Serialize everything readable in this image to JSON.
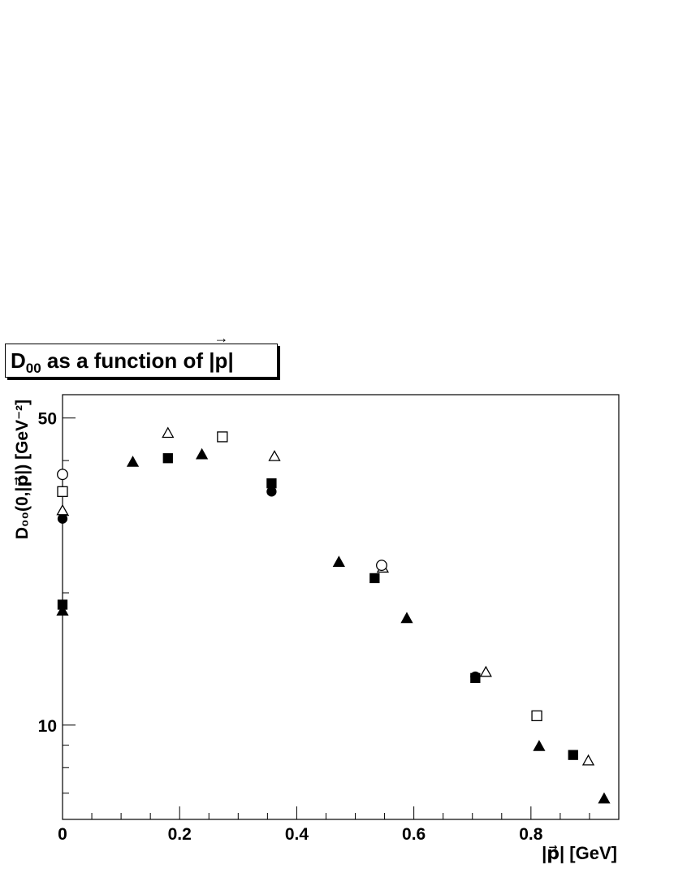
{
  "chart_data": {
    "type": "scatter",
    "title": "D₀₀ as a function of |p⃗|",
    "title_parts": {
      "main": "D",
      "sub": "00",
      "rest": " as a function of |",
      "p": "p",
      "bar": "|",
      "arrow": "→"
    },
    "xlabel": "|p⃗| [GeV]",
    "ylabel": "D₀₀(0,|p⃗|) [GeV⁻²]",
    "x_range": [
      0,
      0.95
    ],
    "y_range": [
      6.1,
      56.5
    ],
    "y_scale": "log",
    "x_ticks": [
      "0",
      "0.2",
      "0.4",
      "0.6",
      "0.8"
    ],
    "x_tick_values": [
      0,
      0.2,
      0.4,
      0.6,
      0.8
    ],
    "y_ticks": [
      "10",
      "50"
    ],
    "y_tick_values": [
      10,
      50
    ],
    "grid": false,
    "legend": "none",
    "series": [
      {
        "marker": "filled-triangle",
        "x": [
          0,
          0.12,
          0.238,
          0.472,
          0.588,
          0.814,
          0.925
        ],
        "y": [
          18.2,
          39.7,
          41.3,
          23.5,
          17.5,
          8.95,
          6.8
        ]
      },
      {
        "marker": "filled-square",
        "x": [
          0,
          0.18,
          0.357,
          0.533,
          0.705,
          0.872
        ],
        "y": [
          18.8,
          40.5,
          35.5,
          21.6,
          12.8,
          8.55
        ]
      },
      {
        "marker": "filled-circle",
        "x": [
          0,
          0.357,
          0.705
        ],
        "y": [
          29.5,
          34.0,
          12.9
        ]
      },
      {
        "marker": "open-triangle",
        "x": [
          0,
          0.18,
          0.362,
          0.547,
          0.723,
          0.898
        ],
        "y": [
          30.8,
          46.2,
          40.9,
          22.8,
          13.2,
          8.3
        ]
      },
      {
        "marker": "open-square",
        "x": [
          0,
          0.273,
          0.81
        ],
        "y": [
          34.0,
          45.3,
          10.5
        ]
      },
      {
        "marker": "open-circle",
        "x": [
          0,
          0.545
        ],
        "y": [
          37.2,
          23.1
        ]
      }
    ]
  }
}
